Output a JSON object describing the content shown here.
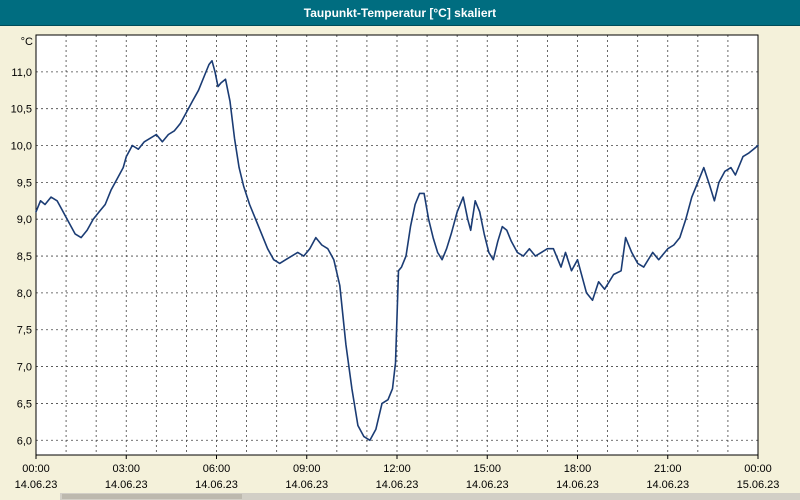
{
  "title": "Taupunkt-Temperatur [°C] skaliert",
  "colors": {
    "titlebar_bg": "#006d80",
    "page_bg": "#f4f1da",
    "plot_bg": "#ffffff",
    "line": "#1b3c74",
    "grid": "#444444",
    "border": "#000000",
    "text": "#000000"
  },
  "chart_data": {
    "type": "line",
    "title": "Taupunkt-Temperatur [°C] skaliert",
    "xlabel": "",
    "ylabel": "°C",
    "ylim": [
      5.8,
      11.5
    ],
    "xlim_hours": [
      0,
      24
    ],
    "grid": "dashed",
    "legend_position": "none",
    "yticks": [
      6.0,
      6.5,
      7.0,
      7.5,
      8.0,
      8.5,
      9.0,
      9.5,
      10.0,
      10.5,
      11.0
    ],
    "ytick_labels": [
      "6,0",
      "6,5",
      "7,0",
      "7,5",
      "8,0",
      "8,5",
      "9,0",
      "9,5",
      "10,0",
      "10,5",
      "11,0"
    ],
    "x_minor_step_hours": 1,
    "x_major_ticks": [
      {
        "hour": 0,
        "time": "00:00",
        "date": "14.06.23"
      },
      {
        "hour": 3,
        "time": "03:00",
        "date": "14.06.23"
      },
      {
        "hour": 6,
        "time": "06:00",
        "date": "14.06.23"
      },
      {
        "hour": 9,
        "time": "09:00",
        "date": "14.06.23"
      },
      {
        "hour": 12,
        "time": "12:00",
        "date": "14.06.23"
      },
      {
        "hour": 15,
        "time": "15:00",
        "date": "14.06.23"
      },
      {
        "hour": 18,
        "time": "18:00",
        "date": "14.06.23"
      },
      {
        "hour": 21,
        "time": "21:00",
        "date": "14.06.23"
      },
      {
        "hour": 24,
        "time": "00:00",
        "date": "15.06.23"
      }
    ],
    "series": [
      {
        "name": "Taupunkt-Temperatur",
        "x": [
          0,
          0.15,
          0.3,
          0.5,
          0.7,
          0.9,
          1.1,
          1.3,
          1.5,
          1.7,
          1.9,
          2.1,
          2.3,
          2.5,
          2.7,
          2.9,
          3.0,
          3.2,
          3.4,
          3.6,
          3.8,
          4.0,
          4.2,
          4.4,
          4.6,
          4.8,
          5.0,
          5.2,
          5.4,
          5.6,
          5.75,
          5.85,
          5.95,
          6.05,
          6.15,
          6.3,
          6.45,
          6.6,
          6.75,
          6.9,
          7.1,
          7.3,
          7.5,
          7.7,
          7.9,
          8.1,
          8.3,
          8.5,
          8.7,
          8.9,
          9.1,
          9.3,
          9.5,
          9.7,
          9.9,
          10.1,
          10.3,
          10.5,
          10.7,
          10.9,
          11.1,
          11.3,
          11.5,
          11.7,
          11.85,
          11.95,
          12.05,
          12.15,
          12.3,
          12.45,
          12.6,
          12.75,
          12.9,
          13.05,
          13.2,
          13.35,
          13.5,
          13.65,
          13.8,
          14.0,
          14.2,
          14.35,
          14.45,
          14.6,
          14.75,
          14.9,
          15.05,
          15.2,
          15.35,
          15.5,
          15.65,
          15.8,
          16.0,
          16.2,
          16.4,
          16.6,
          16.8,
          17.0,
          17.2,
          17.45,
          17.6,
          17.8,
          18.0,
          18.3,
          18.5,
          18.7,
          18.9,
          19.2,
          19.45,
          19.6,
          19.8,
          20.0,
          20.2,
          20.5,
          20.7,
          21.0,
          21.2,
          21.4,
          21.6,
          21.8,
          22.0,
          22.2,
          22.4,
          22.55,
          22.7,
          22.9,
          23.1,
          23.25,
          23.5,
          23.7,
          23.85,
          24.0
        ],
        "y": [
          9.1,
          9.25,
          9.2,
          9.3,
          9.25,
          9.1,
          8.95,
          8.8,
          8.75,
          8.85,
          9.0,
          9.1,
          9.2,
          9.4,
          9.55,
          9.7,
          9.85,
          10.0,
          9.95,
          10.05,
          10.1,
          10.15,
          10.05,
          10.15,
          10.2,
          10.3,
          10.45,
          10.6,
          10.75,
          10.95,
          11.1,
          11.15,
          11.0,
          10.8,
          10.85,
          10.9,
          10.6,
          10.1,
          9.7,
          9.45,
          9.2,
          9.0,
          8.8,
          8.6,
          8.45,
          8.4,
          8.45,
          8.5,
          8.55,
          8.5,
          8.6,
          8.75,
          8.65,
          8.6,
          8.45,
          8.1,
          7.3,
          6.7,
          6.2,
          6.05,
          6.0,
          6.15,
          6.5,
          6.55,
          6.7,
          7.05,
          8.3,
          8.35,
          8.5,
          8.9,
          9.2,
          9.35,
          9.35,
          9.0,
          8.75,
          8.55,
          8.45,
          8.6,
          8.8,
          9.1,
          9.3,
          9.0,
          8.85,
          9.25,
          9.1,
          8.8,
          8.55,
          8.45,
          8.7,
          8.9,
          8.85,
          8.7,
          8.55,
          8.5,
          8.6,
          8.5,
          8.55,
          8.6,
          8.6,
          8.35,
          8.55,
          8.3,
          8.45,
          8.0,
          7.9,
          8.15,
          8.05,
          8.25,
          8.3,
          8.75,
          8.55,
          8.4,
          8.35,
          8.55,
          8.45,
          8.6,
          8.65,
          8.75,
          9.0,
          9.3,
          9.5,
          9.7,
          9.45,
          9.25,
          9.5,
          9.65,
          9.7,
          9.6,
          9.85,
          9.9,
          9.95,
          10.0
        ]
      }
    ]
  }
}
